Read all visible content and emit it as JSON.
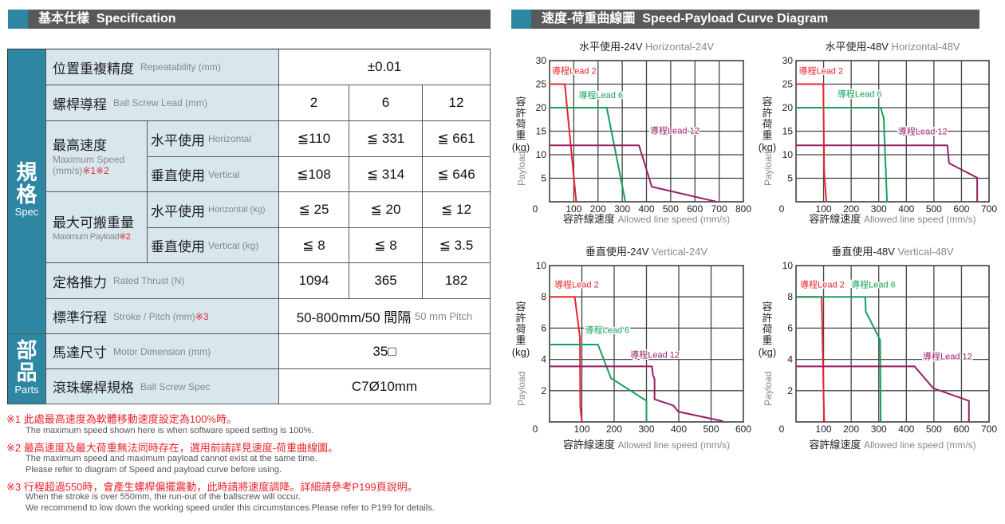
{
  "spec_section": {
    "title_cn": "基本仕樣",
    "title_en": "Specification",
    "side_spec_cn": "規格",
    "side_spec_en": "Spec",
    "side_parts_cn": "部品",
    "side_parts_en": "Parts",
    "rows": {
      "repeatability": {
        "cn": "位置重複精度",
        "en": "Repeatability (mm)",
        "value": "±0.01"
      },
      "lead": {
        "cn": "螺桿導程",
        "en": "Ball Screw Lead (mm)",
        "values": [
          "2",
          "6",
          "12"
        ]
      },
      "max_speed": {
        "cn": "最高速度",
        "en": "Maximum Speed",
        "unit": "(mm/s)",
        "notes": "※1※2",
        "horizontal": {
          "cn": "水平使用",
          "en": "Horizontal",
          "values": [
            "≦110",
            "≦ 331",
            "≦ 661"
          ]
        },
        "vertical": {
          "cn": "垂直使用",
          "en": "Vertical",
          "values": [
            "≦108",
            "≦ 314",
            "≦ 646"
          ]
        }
      },
      "max_payload": {
        "cn": "最大可搬重量",
        "en": "Maximum Payload",
        "notes": "※2",
        "horizontal": {
          "cn": "水平使用",
          "en": "Horizontal (kg)",
          "values": [
            "≦ 25",
            "≦ 20",
            "≦ 12"
          ]
        },
        "vertical": {
          "cn": "垂直使用",
          "en": "Vertical (kg)",
          "values": [
            "≦ 8",
            "≦ 8",
            "≦ 3.5"
          ]
        }
      },
      "thrust": {
        "cn": "定格推力",
        "en": "Rated Thrust (N)",
        "values": [
          "1094",
          "365",
          "182"
        ]
      },
      "stroke": {
        "cn": "標準行程",
        "en": "Stroke / Pitch (mm)",
        "notes": "※3",
        "value": "50-800mm/50 間隔",
        "value_en": "50 mm Pitch"
      },
      "motor": {
        "cn": "馬達尺寸",
        "en": "Motor Dimension (mm)",
        "value": "35□"
      },
      "ballscrew": {
        "cn": "滾珠螺桿規格",
        "en": "Ball Screw Spec",
        "value": "C7Ø10mm"
      }
    }
  },
  "footnotes": [
    {
      "cn": "※1 此處最高速度為軟體移動速度設定為100%時。",
      "en": [
        "The maximum speed shown here is when software speed setting is 100%."
      ]
    },
    {
      "cn": "※2 最高速度及最大荷重無法同時存在，選用前請詳見速度-荷重曲線圖。",
      "en": [
        "The maximum speed and maximum payload cannot exist at the same time.",
        "Please refer to diagram of Speed and payload curve before using."
      ]
    },
    {
      "cn": "※3 行程超過550時，會產生螺桿偏擺震動，此時請將速度調降。詳細請參考P199頁說明。",
      "en": [
        "When the stroke is over 550mm, the run-out of the ballscrew will occur.",
        "We recommend to low down the working speed under this circumstances.Please refer to P199 for details."
      ]
    }
  ],
  "curve_section": {
    "title_cn": "速度-荷重曲線圖",
    "title_en": "Speed-Payload Curve Diagram"
  },
  "colors": {
    "accent": "#2d87a2",
    "header": "#58595b",
    "lead2": "#e8242b",
    "lead6": "#13a35a",
    "lead12": "#9b1e62"
  },
  "chart_data": [
    {
      "type": "line",
      "title_cn": "水平使用-24V",
      "title_en": "Horizontal-24V",
      "xlabel_cn": "容許線速度",
      "xlabel_en": "Allowed line speed (mm/s)",
      "ylabel_cn": "容許荷重(kg)",
      "ylabel_en": "Payload",
      "xlim": [
        0,
        800
      ],
      "xticks": [
        0,
        100,
        200,
        300,
        400,
        500,
        600,
        700,
        800
      ],
      "ylim": [
        0,
        30
      ],
      "yticks": [
        0,
        5,
        10,
        15,
        20,
        25,
        30
      ],
      "grid": true,
      "series": [
        {
          "name": "導程Lead 2",
          "color": "#e8242b",
          "points": [
            [
              0,
              25
            ],
            [
              63,
              25
            ],
            [
              110,
              0
            ]
          ]
        },
        {
          "name": "導程Lead 6",
          "color": "#13a35a",
          "points": [
            [
              0,
              20
            ],
            [
              236,
              20
            ],
            [
              313,
              0
            ]
          ]
        },
        {
          "name": "導程Lead 12",
          "color": "#9b1e62",
          "points": [
            [
              0,
              12
            ],
            [
              369,
              12
            ],
            [
              422,
              3.2
            ],
            [
              690,
              0
            ]
          ]
        }
      ]
    },
    {
      "type": "line",
      "title_cn": "水平使用-48V",
      "title_en": "Horizontal-48V",
      "xlabel_cn": "容許線速度",
      "xlabel_en": "Allowed line speed (mm/s)",
      "ylabel_cn": "容許荷重(kg)",
      "ylabel_en": "Payload",
      "xlim": [
        0,
        700
      ],
      "xticks": [
        0,
        100,
        200,
        300,
        400,
        500,
        600,
        700
      ],
      "ylim": [
        0,
        30
      ],
      "yticks": [
        0,
        5,
        10,
        15,
        20,
        25,
        30
      ],
      "grid": true,
      "series": [
        {
          "name": "導程Lead 2",
          "color": "#e8242b",
          "points": [
            [
              0,
              25
            ],
            [
              99,
              25
            ],
            [
              102,
              6.5
            ],
            [
              110,
              0
            ]
          ]
        },
        {
          "name": "導程Lead 6",
          "color": "#13a35a",
          "points": [
            [
              0,
              20
            ],
            [
              307,
              20
            ],
            [
              318,
              17.8
            ],
            [
              330,
              0
            ]
          ]
        },
        {
          "name": "導程Lead 12",
          "color": "#9b1e62",
          "points": [
            [
              0,
              12
            ],
            [
              549,
              12
            ],
            [
              555,
              8.2
            ],
            [
              657,
              5.1
            ],
            [
              657,
              0
            ]
          ]
        }
      ]
    },
    {
      "type": "line",
      "title_cn": "垂直使用-24V",
      "title_en": "Vertical-24V",
      "xlabel_cn": "容許線速度",
      "xlabel_en": "Allowed line speed (mm/s)",
      "ylabel_cn": "容許荷重(kg)",
      "ylabel_en": "Payload",
      "xlim": [
        0,
        600
      ],
      "xticks": [
        0,
        100,
        200,
        300,
        400,
        500,
        600
      ],
      "ylim": [
        0,
        10
      ],
      "yticks": [
        0,
        2,
        4,
        6,
        8,
        10
      ],
      "grid": true,
      "series": [
        {
          "name": "導程Lead 2",
          "color": "#e8242b",
          "points": [
            [
              0,
              8
            ],
            [
              78,
              8
            ],
            [
              94,
              5.4
            ],
            [
              95,
              1
            ],
            [
              100,
              0
            ]
          ]
        },
        {
          "name": "導程Lead 6",
          "color": "#13a35a",
          "points": [
            [
              0,
              4.95
            ],
            [
              150,
              4.95
            ],
            [
              190,
              2.8
            ],
            [
              300,
              1.35
            ],
            [
              300,
              0
            ]
          ]
        },
        {
          "name": "導程Lead 12",
          "color": "#9b1e62",
          "points": [
            [
              0,
              3.55
            ],
            [
              317,
              3.55
            ],
            [
              320,
              3.0
            ],
            [
              325,
              2.75
            ],
            [
              325,
              1.45
            ],
            [
              383,
              1.05
            ],
            [
              399,
              0.65
            ],
            [
              537,
              0.05
            ]
          ]
        }
      ]
    },
    {
      "type": "line",
      "title_cn": "垂直使用-48V",
      "title_en": "Vertical-48V",
      "xlabel_cn": "容許線速度",
      "xlabel_en": "Allowed line speed (mm/s)",
      "ylabel_cn": "容許荷重(kg)",
      "ylabel_en": "Payload",
      "xlim": [
        0,
        700
      ],
      "xticks": [
        0,
        100,
        200,
        300,
        400,
        500,
        600,
        700
      ],
      "ylim": [
        0,
        10
      ],
      "yticks": [
        0,
        2,
        4,
        6,
        8,
        10
      ],
      "grid": true,
      "series": [
        {
          "name": "導程Lead 2",
          "color": "#e8242b",
          "points": [
            [
              0,
              8
            ],
            [
              93,
              8
            ],
            [
              102,
              0
            ]
          ]
        },
        {
          "name": "導程Lead 6",
          "color": "#13a35a",
          "points": [
            [
              0,
              8
            ],
            [
              251,
              8
            ],
            [
              253,
              7.05
            ],
            [
              305,
              5.25
            ],
            [
              307,
              0
            ]
          ]
        },
        {
          "name": "導程Lead 12",
          "color": "#9b1e62",
          "points": [
            [
              0,
              3.55
            ],
            [
              430,
              3.55
            ],
            [
              498,
              2.15
            ],
            [
              627,
              1.35
            ],
            [
              627,
              0
            ]
          ]
        }
      ]
    }
  ]
}
